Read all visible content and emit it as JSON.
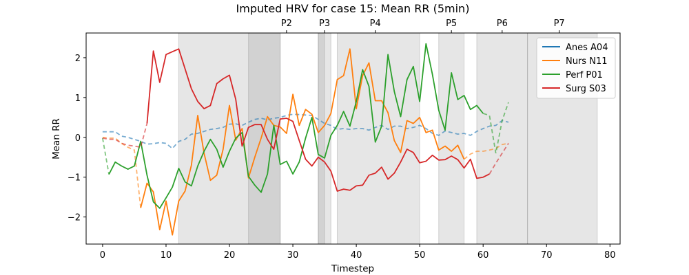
{
  "chart_data": {
    "type": "line",
    "title": "Imputed HRV for case 15: Mean RR (5min)",
    "xlabel": "Timestep",
    "ylabel": "Mean RR",
    "xlim": [
      -2.6,
      81.6
    ],
    "ylim": [
      -2.68,
      2.62
    ],
    "x_ticks": [
      0,
      10,
      20,
      30,
      40,
      50,
      60,
      70,
      80
    ],
    "y_ticks": [
      -2,
      -1,
      0,
      1,
      2
    ],
    "grid": false,
    "legend_position": "top-right",
    "phase_labels": [
      {
        "label": "P2",
        "x": 29
      },
      {
        "label": "P3",
        "x": 35
      },
      {
        "label": "P4",
        "x": 43
      },
      {
        "label": "P5",
        "x": 55
      },
      {
        "label": "P6",
        "x": 63
      },
      {
        "label": "P7",
        "x": 72
      }
    ],
    "shaded_regions": [
      {
        "x0": 12,
        "x1": 28,
        "shade": "light"
      },
      {
        "x0": 23,
        "x1": 28,
        "shade": "dark"
      },
      {
        "x0": 34,
        "x1": 36,
        "shade": "light"
      },
      {
        "x0": 34,
        "x1": 35,
        "shade": "dark"
      },
      {
        "x0": 37,
        "x1": 50,
        "shade": "light"
      },
      {
        "x0": 53,
        "x1": 57,
        "shade": "light"
      },
      {
        "x0": 59,
        "x1": 67,
        "shade": "light"
      },
      {
        "x0": 67,
        "x1": 78,
        "shade": "light"
      }
    ],
    "series": [
      {
        "name": "Anes A04",
        "color": "#1f77b4",
        "observed": [],
        "imputed": [
          [
            0,
            0.14
          ],
          [
            1,
            0.14
          ],
          [
            2,
            0.14
          ],
          [
            3,
            0.03
          ],
          [
            4,
            0.0
          ],
          [
            5,
            -0.05
          ],
          [
            6,
            -0.1
          ],
          [
            7,
            -0.17
          ],
          [
            8,
            -0.16
          ],
          [
            9,
            -0.13
          ],
          [
            10,
            -0.15
          ],
          [
            11,
            -0.28
          ],
          [
            12,
            -0.1
          ],
          [
            13,
            -0.05
          ],
          [
            14,
            0.08
          ],
          [
            15,
            0.1
          ],
          [
            16,
            0.15
          ],
          [
            17,
            0.2
          ],
          [
            18,
            0.22
          ],
          [
            19,
            0.25
          ],
          [
            20,
            0.33
          ],
          [
            21,
            0.34
          ],
          [
            22,
            0.3
          ],
          [
            23,
            0.38
          ],
          [
            24,
            0.45
          ],
          [
            25,
            0.48
          ],
          [
            26,
            0.44
          ],
          [
            27,
            0.48
          ],
          [
            28,
            0.5
          ],
          [
            29,
            0.55
          ],
          [
            30,
            0.58
          ],
          [
            31,
            0.57
          ],
          [
            32,
            0.56
          ],
          [
            33,
            0.55
          ],
          [
            34,
            0.45
          ],
          [
            35,
            0.35
          ],
          [
            36,
            0.3
          ],
          [
            37,
            0.2
          ],
          [
            38,
            0.22
          ],
          [
            39,
            0.2
          ],
          [
            40,
            0.22
          ],
          [
            41,
            0.22
          ],
          [
            42,
            0.18
          ],
          [
            43,
            0.25
          ],
          [
            44,
            0.3
          ],
          [
            45,
            0.2
          ],
          [
            46,
            0.28
          ],
          [
            47,
            0.28
          ],
          [
            48,
            0.22
          ],
          [
            49,
            0.25
          ],
          [
            50,
            0.3
          ],
          [
            51,
            0.22
          ],
          [
            52,
            0.1
          ],
          [
            53,
            0.05
          ],
          [
            54,
            0.16
          ],
          [
            55,
            0.12
          ],
          [
            56,
            0.08
          ],
          [
            57,
            0.1
          ],
          [
            58,
            0.05
          ],
          [
            59,
            0.15
          ],
          [
            60,
            0.22
          ],
          [
            61,
            0.28
          ],
          [
            62,
            0.3
          ],
          [
            63,
            0.42
          ],
          [
            64,
            0.38
          ]
        ]
      },
      {
        "name": "Nurs N11",
        "color": "#ff7f0e",
        "observed": [
          [
            6,
            -1.77
          ],
          [
            7,
            -1.15
          ],
          [
            8,
            -1.37
          ],
          [
            9,
            -2.32
          ],
          [
            10,
            -1.6
          ],
          [
            11,
            -2.45
          ],
          [
            12,
            -1.6
          ],
          [
            13,
            -1.35
          ],
          [
            14,
            -0.7
          ],
          [
            15,
            0.55
          ],
          [
            16,
            -0.4
          ],
          [
            17,
            -1.08
          ],
          [
            18,
            -0.95
          ],
          [
            19,
            -0.3
          ],
          [
            20,
            0.8
          ],
          [
            21,
            -0.07
          ],
          [
            22,
            0.22
          ],
          [
            23,
            -1.02
          ],
          [
            24,
            -0.5
          ],
          [
            25,
            -0.02
          ],
          [
            26,
            0.52
          ],
          [
            27,
            0.3
          ],
          [
            28,
            0.26
          ],
          [
            29,
            0.1
          ],
          [
            30,
            1.08
          ],
          [
            31,
            0.3
          ],
          [
            32,
            0.7
          ],
          [
            33,
            0.58
          ],
          [
            34,
            0.12
          ],
          [
            35,
            0.3
          ],
          [
            36,
            0.6
          ],
          [
            37,
            1.45
          ],
          [
            38,
            1.55
          ],
          [
            39,
            2.22
          ],
          [
            40,
            0.72
          ],
          [
            41,
            1.55
          ],
          [
            42,
            1.87
          ],
          [
            43,
            0.92
          ],
          [
            44,
            0.92
          ],
          [
            45,
            0.62
          ],
          [
            46,
            -0.08
          ],
          [
            47,
            -0.38
          ],
          [
            48,
            0.42
          ],
          [
            49,
            0.35
          ],
          [
            50,
            0.5
          ],
          [
            51,
            0.12
          ],
          [
            52,
            0.18
          ],
          [
            53,
            -0.32
          ],
          [
            54,
            -0.22
          ],
          [
            55,
            -0.35
          ],
          [
            56,
            -0.2
          ],
          [
            57,
            -0.55
          ]
        ],
        "imputed": [
          [
            0,
            0.0
          ],
          [
            1,
            -0.02
          ],
          [
            2,
            -0.02
          ],
          [
            3,
            -0.15
          ],
          [
            4,
            -0.25
          ],
          [
            5,
            -0.32
          ],
          [
            6,
            -1.77
          ],
          [
            57,
            -0.55
          ],
          [
            58,
            -0.42
          ],
          [
            59,
            -0.35
          ],
          [
            60,
            -0.35
          ],
          [
            61,
            -0.32
          ],
          [
            62,
            -0.28
          ],
          [
            63,
            -0.18
          ],
          [
            64,
            -0.15
          ]
        ]
      },
      {
        "name": "Perf P01",
        "color": "#2ca02c",
        "observed": [
          [
            1,
            -0.93
          ],
          [
            2,
            -0.62
          ],
          [
            3,
            -0.72
          ],
          [
            4,
            -0.8
          ],
          [
            5,
            -0.72
          ],
          [
            6,
            -0.1
          ],
          [
            7,
            -0.95
          ],
          [
            8,
            -1.62
          ],
          [
            9,
            -1.78
          ],
          [
            10,
            -1.52
          ],
          [
            11,
            -1.25
          ],
          [
            12,
            -0.78
          ],
          [
            13,
            -1.12
          ],
          [
            14,
            -1.22
          ],
          [
            15,
            -0.72
          ],
          [
            16,
            -0.35
          ],
          [
            17,
            -0.05
          ],
          [
            18,
            -0.3
          ],
          [
            19,
            -0.75
          ],
          [
            20,
            -0.35
          ],
          [
            21,
            -0.02
          ],
          [
            22,
            0.12
          ],
          [
            23,
            -0.98
          ],
          [
            24,
            -1.2
          ],
          [
            25,
            -1.38
          ],
          [
            26,
            -0.92
          ],
          [
            27,
            0.3
          ],
          [
            28,
            -0.68
          ],
          [
            29,
            -0.6
          ],
          [
            30,
            -0.92
          ],
          [
            31,
            -0.62
          ],
          [
            32,
            -0.02
          ],
          [
            33,
            0.5
          ],
          [
            34,
            -0.43
          ],
          [
            35,
            -0.52
          ],
          [
            36,
            0.05
          ],
          [
            37,
            0.3
          ],
          [
            38,
            0.65
          ],
          [
            39,
            0.28
          ],
          [
            40,
            0.9
          ],
          [
            41,
            1.7
          ],
          [
            42,
            1.28
          ],
          [
            43,
            -0.12
          ],
          [
            44,
            0.28
          ],
          [
            45,
            2.08
          ],
          [
            46,
            1.15
          ],
          [
            47,
            0.52
          ],
          [
            48,
            1.45
          ],
          [
            49,
            1.78
          ],
          [
            50,
            0.9
          ],
          [
            51,
            2.35
          ],
          [
            52,
            1.58
          ],
          [
            53,
            0.68
          ],
          [
            54,
            0.18
          ],
          [
            55,
            1.62
          ],
          [
            56,
            0.95
          ],
          [
            57,
            1.05
          ],
          [
            58,
            0.7
          ],
          [
            59,
            0.8
          ],
          [
            60,
            0.6
          ]
        ],
        "imputed": [
          [
            0,
            -0.02
          ],
          [
            1,
            -0.93
          ],
          [
            60,
            0.6
          ],
          [
            61,
            0.55
          ],
          [
            62,
            -0.4
          ],
          [
            63,
            0.42
          ],
          [
            64,
            0.88
          ]
        ]
      },
      {
        "name": "Surg S03",
        "color": "#d62728",
        "observed": [
          [
            7,
            0.35
          ],
          [
            8,
            2.17
          ],
          [
            9,
            1.38
          ],
          [
            10,
            2.08
          ],
          [
            11,
            2.15
          ],
          [
            12,
            2.22
          ],
          [
            13,
            1.72
          ],
          [
            14,
            1.22
          ],
          [
            15,
            0.9
          ],
          [
            16,
            0.72
          ],
          [
            17,
            0.8
          ],
          [
            18,
            1.35
          ],
          [
            19,
            1.47
          ],
          [
            20,
            1.56
          ],
          [
            21,
            0.95
          ],
          [
            22,
            -0.22
          ],
          [
            23,
            0.25
          ],
          [
            24,
            0.32
          ],
          [
            25,
            0.32
          ],
          [
            26,
            -0.05
          ],
          [
            27,
            -0.3
          ],
          [
            28,
            0.46
          ],
          [
            29,
            0.48
          ],
          [
            30,
            0.4
          ],
          [
            31,
            -0.08
          ],
          [
            32,
            -0.55
          ],
          [
            33,
            -0.72
          ],
          [
            34,
            -0.5
          ],
          [
            35,
            -0.62
          ],
          [
            36,
            -0.85
          ],
          [
            37,
            -1.35
          ],
          [
            38,
            -1.3
          ],
          [
            39,
            -1.33
          ],
          [
            40,
            -1.22
          ],
          [
            41,
            -1.2
          ],
          [
            42,
            -0.95
          ],
          [
            43,
            -0.9
          ],
          [
            44,
            -0.75
          ],
          [
            45,
            -1.05
          ],
          [
            46,
            -0.9
          ],
          [
            47,
            -0.62
          ],
          [
            48,
            -0.3
          ],
          [
            49,
            -0.38
          ],
          [
            50,
            -0.64
          ],
          [
            51,
            -0.6
          ],
          [
            52,
            -0.45
          ],
          [
            53,
            -0.57
          ],
          [
            54,
            -0.56
          ],
          [
            55,
            -0.47
          ],
          [
            56,
            -0.56
          ],
          [
            57,
            -0.77
          ],
          [
            58,
            -0.55
          ],
          [
            59,
            -1.03
          ],
          [
            60,
            -1.0
          ],
          [
            61,
            -0.92
          ]
        ],
        "imputed": [
          [
            0,
            -0.02
          ],
          [
            1,
            -0.05
          ],
          [
            2,
            -0.05
          ],
          [
            3,
            -0.15
          ],
          [
            4,
            -0.2
          ],
          [
            5,
            -0.22
          ],
          [
            6,
            -0.25
          ],
          [
            7,
            0.35
          ],
          [
            61,
            -0.92
          ],
          [
            62,
            -0.65
          ],
          [
            63,
            -0.4
          ],
          [
            64,
            -0.15
          ]
        ]
      }
    ]
  }
}
